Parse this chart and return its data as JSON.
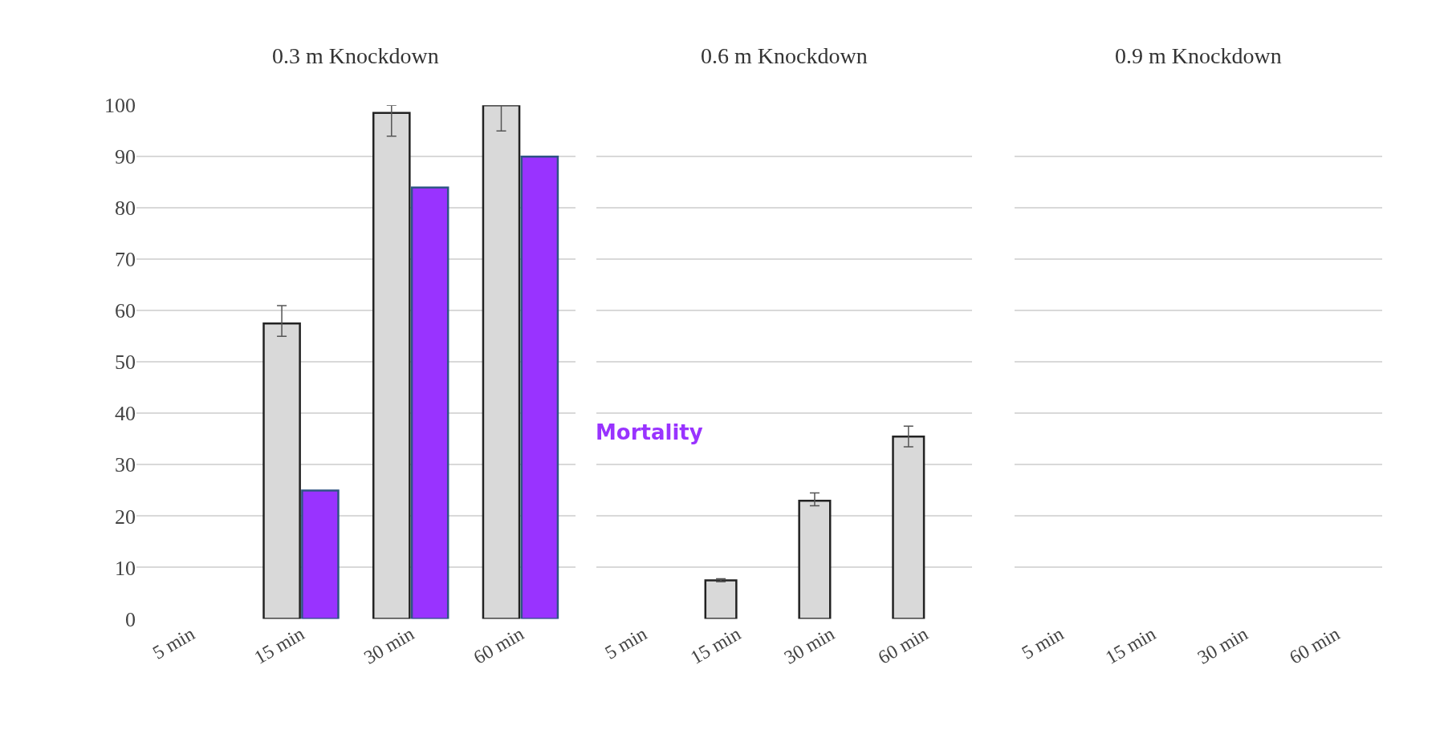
{
  "chart_data": [
    {
      "type": "bar",
      "title": "0.3 m Knockdown",
      "categories": [
        "5 min",
        "15 min",
        "30 min",
        "60 min"
      ],
      "series": [
        {
          "color": "#d9d9d9",
          "values": [
            null,
            57.5,
            98.5,
            100
          ],
          "errors": [
            null,
            [
              55,
              61
            ],
            [
              94,
              100
            ],
            [
              95,
              100
            ]
          ]
        },
        {
          "name": "Mortality",
          "color": "#9933ff",
          "values": [
            null,
            25,
            84,
            90
          ]
        }
      ],
      "ylim": [
        0,
        100
      ],
      "yticks": [
        0,
        10,
        20,
        30,
        40,
        50,
        60,
        70,
        80,
        90,
        100
      ],
      "grid": "y",
      "legend": false
    },
    {
      "type": "bar",
      "title": "0.6 m Knockdown",
      "categories": [
        "5 min",
        "15 min",
        "30 min",
        "60 min"
      ],
      "series": [
        {
          "color": "#d9d9d9",
          "values": [
            null,
            7.5,
            23,
            35.5
          ],
          "errors": [
            null,
            [
              7.2,
              7.8
            ],
            [
              22,
              24.5
            ],
            [
              33.5,
              37.5
            ]
          ]
        },
        {
          "color": "#9933ff",
          "values": [
            null,
            null,
            null,
            null
          ]
        }
      ],
      "ylim": [
        0,
        100
      ],
      "yticks": [
        0,
        10,
        20,
        30,
        40,
        50,
        60,
        70,
        80,
        90,
        100
      ],
      "grid": "y",
      "legend": false,
      "tick_labels": "x"
    },
    {
      "type": "bar",
      "title": "0.9 m Knockdown",
      "categories": [
        "5 min",
        "15 min",
        "30 min",
        "60 min"
      ],
      "series": [
        {
          "color": "#d9d9d9",
          "values": [
            null,
            null,
            null,
            null
          ]
        },
        {
          "color": "#9933ff",
          "values": [
            null,
            null,
            null,
            null
          ]
        }
      ],
      "ylim": [
        0,
        100
      ],
      "yticks": [
        0,
        10,
        20,
        30,
        40,
        50,
        60,
        70,
        80,
        90,
        100
      ],
      "grid": "y",
      "legend": false,
      "tick_labels": "x"
    }
  ]
}
